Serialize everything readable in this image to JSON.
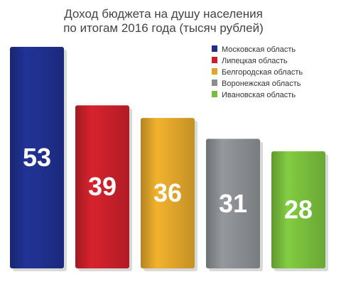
{
  "chart_data": {
    "type": "bar",
    "title": "Доход бюджета на душу населения",
    "subtitle": "по итогам 2016 года (тысяч рублей)",
    "categories": [
      "Московская область",
      "Липецкая область",
      "Белгородская область",
      "Воронежская область",
      "Ивановская область"
    ],
    "values": [
      53,
      39,
      36,
      31,
      28
    ],
    "colors": [
      "#1f2f8c",
      "#c8202a",
      "#e0a52a",
      "#8a8d91",
      "#78be3c"
    ],
    "legend_position": "top-right",
    "grid": false,
    "ylim": [
      0,
      53
    ]
  }
}
